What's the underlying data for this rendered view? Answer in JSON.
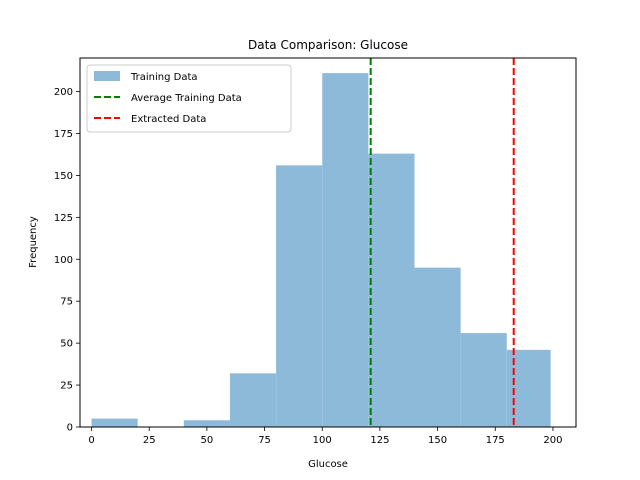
{
  "chart_data": {
    "type": "bar",
    "title": "Data Comparison: Glucose",
    "xlabel": "Glucose",
    "ylabel": "Frequency",
    "xlim": [
      -5,
      210
    ],
    "ylim": [
      0,
      220
    ],
    "xticks": [
      0,
      25,
      50,
      75,
      100,
      125,
      150,
      175,
      200
    ],
    "yticks": [
      0,
      25,
      50,
      75,
      100,
      125,
      150,
      175,
      200
    ],
    "bins": [
      {
        "start": 0,
        "end": 20,
        "count": 5
      },
      {
        "start": 20,
        "end": 40,
        "count": 0
      },
      {
        "start": 40,
        "end": 60,
        "count": 4
      },
      {
        "start": 60,
        "end": 80,
        "count": 32
      },
      {
        "start": 80,
        "end": 100,
        "count": 156
      },
      {
        "start": 100,
        "end": 120,
        "count": 211
      },
      {
        "start": 120,
        "end": 140,
        "count": 163
      },
      {
        "start": 140,
        "end": 160,
        "count": 95
      },
      {
        "start": 160,
        "end": 180,
        "count": 56
      },
      {
        "start": 180,
        "end": 199,
        "count": 46
      }
    ],
    "histogram_color": "#8ebad9",
    "vlines": [
      {
        "name": "Average Training Data",
        "x": 121,
        "color": "#008000",
        "style": "dashed"
      },
      {
        "name": "Extracted Data",
        "x": 183,
        "color": "#ff0000",
        "style": "dashed"
      }
    ],
    "legend": {
      "position": "upper-left",
      "entries": [
        "Training Data",
        "Average Training Data",
        "Extracted Data"
      ]
    },
    "grid": false
  }
}
